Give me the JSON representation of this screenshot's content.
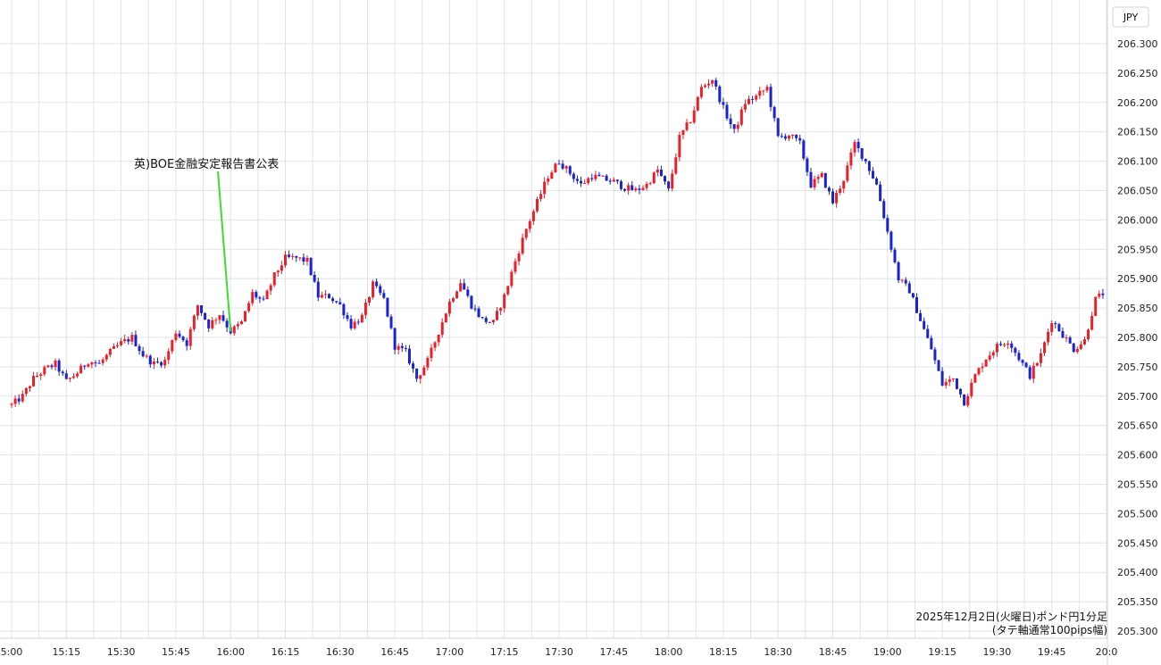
{
  "chart_data": {
    "type": "candlestick",
    "currency_label": "JPY",
    "y_ticks": [
      "206.300",
      "206.250",
      "206.200",
      "206.150",
      "206.100",
      "206.050",
      "206.000",
      "205.950",
      "205.900",
      "205.850",
      "205.800",
      "205.750",
      "205.700",
      "205.650",
      "205.600",
      "205.550",
      "205.500",
      "205.450",
      "205.400",
      "205.350",
      "205.300"
    ],
    "y_range": [
      205.29,
      206.35
    ],
    "x_ticks": [
      "5:00",
      "15:15",
      "15:30",
      "15:45",
      "16:00",
      "16:15",
      "16:30",
      "16:45",
      "17:00",
      "17:15",
      "17:30",
      "17:45",
      "18:00",
      "18:15",
      "18:30",
      "18:45",
      "19:00",
      "19:15",
      "19:30",
      "19:45",
      "20:0"
    ],
    "interval": "1m",
    "up_color": "#e8202a",
    "down_color": "#1a24c8",
    "grid": true,
    "annotation": {
      "text": "英)BOE金融安定報告書公表",
      "time": "16:00",
      "price": 205.81,
      "line_color": "#3ddc2f"
    },
    "caption": [
      "2025年12月2日(火曜日)ポンド円1分足",
      "(タテ軸通常100pips幅)"
    ],
    "close_path": [
      [
        "15:00",
        205.685
      ],
      [
        "15:03",
        205.7
      ],
      [
        "15:06",
        205.73
      ],
      [
        "15:09",
        205.745
      ],
      [
        "15:12",
        205.755
      ],
      [
        "15:15",
        205.725
      ],
      [
        "15:18",
        205.74
      ],
      [
        "15:21",
        205.76
      ],
      [
        "15:24",
        205.755
      ],
      [
        "15:27",
        205.775
      ],
      [
        "15:30",
        205.79
      ],
      [
        "15:33",
        205.8
      ],
      [
        "15:36",
        205.77
      ],
      [
        "15:39",
        205.755
      ],
      [
        "15:42",
        205.76
      ],
      [
        "15:45",
        205.81
      ],
      [
        "15:48",
        205.79
      ],
      [
        "15:51",
        205.855
      ],
      [
        "15:54",
        205.82
      ],
      [
        "15:57",
        205.84
      ],
      [
        "16:00",
        205.81
      ],
      [
        "16:03",
        205.825
      ],
      [
        "16:06",
        205.875
      ],
      [
        "16:09",
        205.86
      ],
      [
        "16:12",
        205.905
      ],
      [
        "16:15",
        205.935
      ],
      [
        "16:18",
        205.935
      ],
      [
        "16:21",
        205.93
      ],
      [
        "16:24",
        205.87
      ],
      [
        "16:27",
        205.87
      ],
      [
        "16:30",
        205.855
      ],
      [
        "16:33",
        205.82
      ],
      [
        "16:36",
        205.835
      ],
      [
        "16:39",
        205.89
      ],
      [
        "16:42",
        205.865
      ],
      [
        "16:45",
        205.785
      ],
      [
        "16:48",
        205.775
      ],
      [
        "16:51",
        205.73
      ],
      [
        "16:54",
        205.76
      ],
      [
        "16:57",
        205.81
      ],
      [
        "17:00",
        205.86
      ],
      [
        "17:03",
        205.895
      ],
      [
        "17:06",
        205.855
      ],
      [
        "17:09",
        205.83
      ],
      [
        "17:12",
        205.825
      ],
      [
        "17:15",
        205.87
      ],
      [
        "17:18",
        205.93
      ],
      [
        "17:21",
        205.985
      ],
      [
        "17:24",
        206.03
      ],
      [
        "17:27",
        206.075
      ],
      [
        "17:30",
        206.1
      ],
      [
        "17:33",
        206.08
      ],
      [
        "17:36",
        206.06
      ],
      [
        "17:39",
        206.075
      ],
      [
        "17:42",
        206.07
      ],
      [
        "17:45",
        206.065
      ],
      [
        "17:48",
        206.055
      ],
      [
        "17:51",
        206.05
      ],
      [
        "17:54",
        206.06
      ],
      [
        "17:57",
        206.085
      ],
      [
        "18:00",
        206.05
      ],
      [
        "18:03",
        206.14
      ],
      [
        "18:06",
        206.17
      ],
      [
        "18:09",
        206.225
      ],
      [
        "18:12",
        206.24
      ],
      [
        "18:15",
        206.19
      ],
      [
        "18:18",
        206.15
      ],
      [
        "18:21",
        206.2
      ],
      [
        "18:24",
        206.21
      ],
      [
        "18:27",
        206.225
      ],
      [
        "18:30",
        206.14
      ],
      [
        "18:33",
        206.145
      ],
      [
        "18:36",
        206.13
      ],
      [
        "18:39",
        206.06
      ],
      [
        "18:42",
        206.075
      ],
      [
        "18:45",
        206.03
      ],
      [
        "18:48",
        206.07
      ],
      [
        "18:51",
        206.13
      ],
      [
        "18:54",
        206.1
      ],
      [
        "18:57",
        206.06
      ],
      [
        "19:00",
        205.98
      ],
      [
        "19:03",
        205.9
      ],
      [
        "19:06",
        205.88
      ],
      [
        "19:09",
        205.83
      ],
      [
        "19:12",
        205.78
      ],
      [
        "19:15",
        205.72
      ],
      [
        "19:18",
        205.73
      ],
      [
        "19:21",
        205.69
      ],
      [
        "19:24",
        205.735
      ],
      [
        "19:27",
        205.765
      ],
      [
        "19:30",
        205.785
      ],
      [
        "19:33",
        205.795
      ],
      [
        "19:36",
        205.765
      ],
      [
        "19:39",
        205.735
      ],
      [
        "19:42",
        205.77
      ],
      [
        "19:45",
        205.83
      ],
      [
        "19:48",
        205.805
      ],
      [
        "19:51",
        205.78
      ],
      [
        "19:54",
        205.795
      ],
      [
        "19:57",
        205.865
      ],
      [
        "20:00",
        205.88
      ]
    ]
  }
}
